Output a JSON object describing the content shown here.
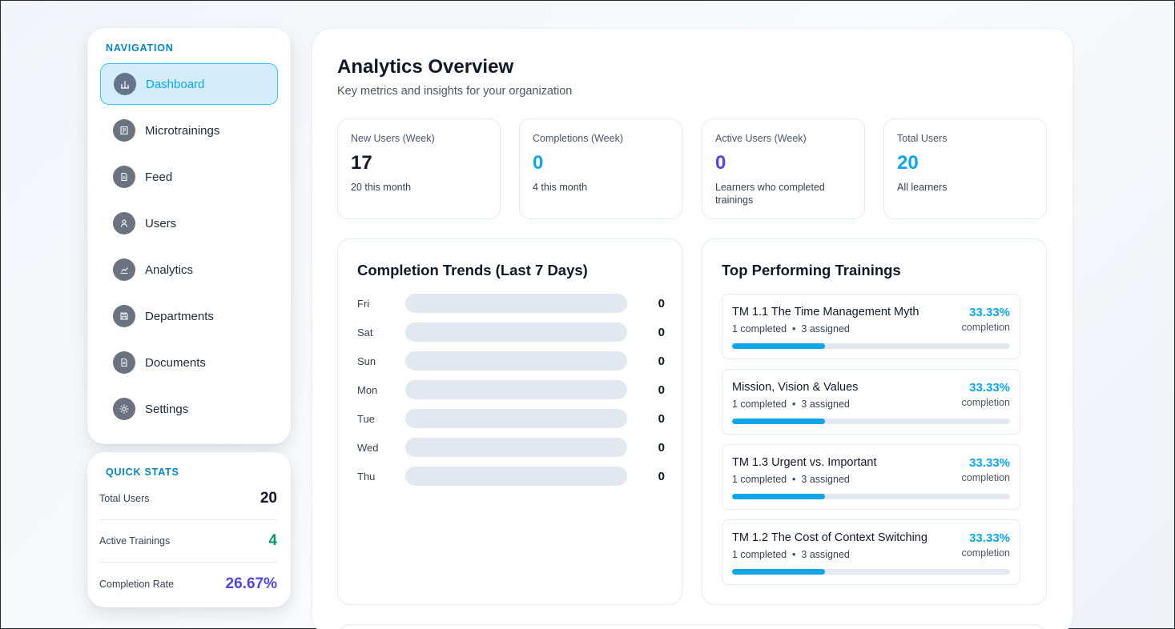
{
  "sidebar": {
    "section_label": "NAVIGATION",
    "items": [
      {
        "label": "Dashboard",
        "icon": "bar-chart-icon",
        "active": true
      },
      {
        "label": "Microtrainings",
        "icon": "book-icon",
        "active": false
      },
      {
        "label": "Feed",
        "icon": "document-icon",
        "active": false
      },
      {
        "label": "Users",
        "icon": "user-icon",
        "active": false
      },
      {
        "label": "Analytics",
        "icon": "line-chart-icon",
        "active": false
      },
      {
        "label": "Departments",
        "icon": "save-icon",
        "active": false
      },
      {
        "label": "Documents",
        "icon": "file-icon",
        "active": false
      },
      {
        "label": "Settings",
        "icon": "gear-icon",
        "active": false
      }
    ]
  },
  "quick_stats": {
    "section_label": "QUICK STATS",
    "rows": [
      {
        "label": "Total Users",
        "value": "20",
        "color": "#111827"
      },
      {
        "label": "Active Trainings",
        "value": "4",
        "color": "#059669"
      },
      {
        "label": "Completion Rate",
        "value": "26.67%",
        "color": "#4f46e5"
      }
    ]
  },
  "main": {
    "title": "Analytics Overview",
    "subtitle": "Key metrics and insights for your organization",
    "metrics": [
      {
        "label": "New Users (Week)",
        "value": "17",
        "sub": "20 this month",
        "color": "#111827"
      },
      {
        "label": "Completions (Week)",
        "value": "0",
        "sub": "4 this month",
        "color": "#0ea5e9"
      },
      {
        "label": "Active Users (Week)",
        "value": "0",
        "sub": "Learners who completed trainings",
        "color": "#4f46e5"
      },
      {
        "label": "Total Users",
        "value": "20",
        "sub": "All learners",
        "color": "#0ea5e9"
      }
    ],
    "trends": {
      "title": "Completion Trends (Last 7 Days)",
      "rows": [
        {
          "day": "Fri",
          "value": "0"
        },
        {
          "day": "Sat",
          "value": "0"
        },
        {
          "day": "Sun",
          "value": "0"
        },
        {
          "day": "Mon",
          "value": "0"
        },
        {
          "day": "Tue",
          "value": "0"
        },
        {
          "day": "Wed",
          "value": "0"
        },
        {
          "day": "Thu",
          "value": "0"
        }
      ]
    },
    "top_trainings": {
      "title": "Top Performing Trainings",
      "items": [
        {
          "name": "TM 1.1 The Time Management Myth",
          "completed": "1 completed",
          "assigned": "3 assigned",
          "pct": "33.33%",
          "pct_label": "completion",
          "fraction": 0.3333
        },
        {
          "name": "Mission, Vision & Values",
          "completed": "1 completed",
          "assigned": "3 assigned",
          "pct": "33.33%",
          "pct_label": "completion",
          "fraction": 0.3333
        },
        {
          "name": "TM 1.3 Urgent vs. Important",
          "completed": "1 completed",
          "assigned": "3 assigned",
          "pct": "33.33%",
          "pct_label": "completion",
          "fraction": 0.3333
        },
        {
          "name": "TM 1.2 The Cost of Context Switching",
          "completed": "1 completed",
          "assigned": "3 assigned",
          "pct": "33.33%",
          "pct_label": "completion",
          "fraction": 0.3333
        }
      ]
    }
  }
}
